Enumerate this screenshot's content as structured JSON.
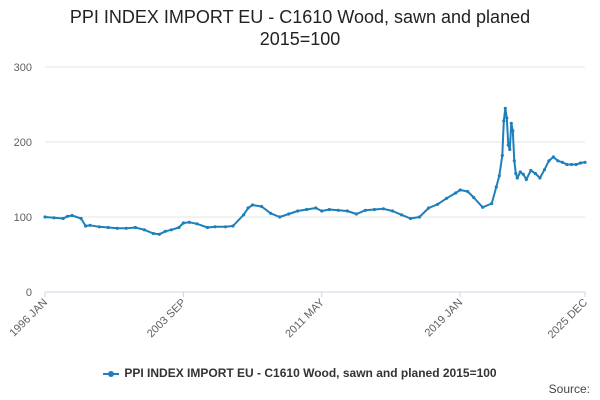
{
  "title_line1": "PPI INDEX IMPORT EU - C1610 Wood, sawn and planed",
  "title_line2": "2015=100",
  "legend_label": "PPI INDEX IMPORT EU - C1610 Wood, sawn and planed 2015=100",
  "credits": "Source:",
  "colors": {
    "series": "#1e7fba",
    "grid": "#e6e6e6",
    "axis": "#ccd6eb"
  },
  "icons": {
    "legend_marker": "line-with-dot"
  },
  "chart_data": {
    "type": "line",
    "title": "PPI INDEX IMPORT EU - C1610 Wood, sawn and planed 2015=100",
    "x_tick_labels": [
      "1996 JAN",
      "2003 SEP",
      "2011 MAY",
      "2019 JAN",
      "2025 DEC"
    ],
    "y_ticks": [
      0,
      100,
      200,
      300
    ],
    "ylim": [
      0,
      300
    ],
    "xlim": [
      "1996-01",
      "2025-12"
    ],
    "grid": "horizontal",
    "legend_position": "bottom",
    "series": [
      {
        "name": "PPI INDEX IMPORT EU - C1610 Wood, sawn and planed 2015=100",
        "x": [
          "1996-01",
          "1996-07",
          "1997-01",
          "1997-04",
          "1997-07",
          "1998-01",
          "1998-04",
          "1998-07",
          "1999-01",
          "1999-07",
          "2000-01",
          "2000-07",
          "2001-01",
          "2001-07",
          "2002-01",
          "2002-05",
          "2002-09",
          "2003-01",
          "2003-06",
          "2003-09",
          "2004-01",
          "2004-06",
          "2005-01",
          "2005-06",
          "2006-01",
          "2006-06",
          "2007-01",
          "2007-04",
          "2007-07",
          "2008-01",
          "2008-07",
          "2009-01",
          "2009-07",
          "2010-01",
          "2010-07",
          "2011-01",
          "2011-05",
          "2011-10",
          "2012-04",
          "2012-10",
          "2013-04",
          "2013-10",
          "2014-04",
          "2014-10",
          "2015-04",
          "2015-10",
          "2016-04",
          "2016-10",
          "2017-04",
          "2017-10",
          "2018-04",
          "2018-10",
          "2019-01",
          "2019-06",
          "2019-10",
          "2020-04",
          "2020-10",
          "2021-01",
          "2021-03",
          "2021-05",
          "2021-06",
          "2021-07",
          "2021-08",
          "2021-09",
          "2021-10",
          "2021-11",
          "2021-12",
          "2022-01",
          "2022-02",
          "2022-03",
          "2022-05",
          "2022-07",
          "2022-09",
          "2022-12",
          "2023-03",
          "2023-06",
          "2023-09",
          "2023-12",
          "2024-03",
          "2024-06",
          "2024-09",
          "2024-12",
          "2025-03",
          "2025-06",
          "2025-09",
          "2025-12"
        ],
        "y": [
          100,
          99,
          98,
          101,
          102,
          98,
          88,
          89,
          87,
          86,
          85,
          85,
          86,
          83,
          78,
          77,
          81,
          83,
          86,
          92,
          93,
          91,
          86,
          87,
          87,
          88,
          103,
          112,
          116,
          114,
          105,
          100,
          104,
          108,
          110,
          112,
          108,
          110,
          109,
          108,
          104,
          109,
          110,
          111,
          108,
          103,
          98,
          100,
          112,
          117,
          125,
          132,
          136,
          134,
          126,
          113,
          118,
          140,
          155,
          182,
          228,
          245,
          232,
          196,
          190,
          225,
          215,
          175,
          158,
          152,
          160,
          157,
          150,
          162,
          158,
          152,
          163,
          175,
          180,
          175,
          173,
          170,
          170,
          170,
          172,
          173
        ]
      }
    ]
  }
}
